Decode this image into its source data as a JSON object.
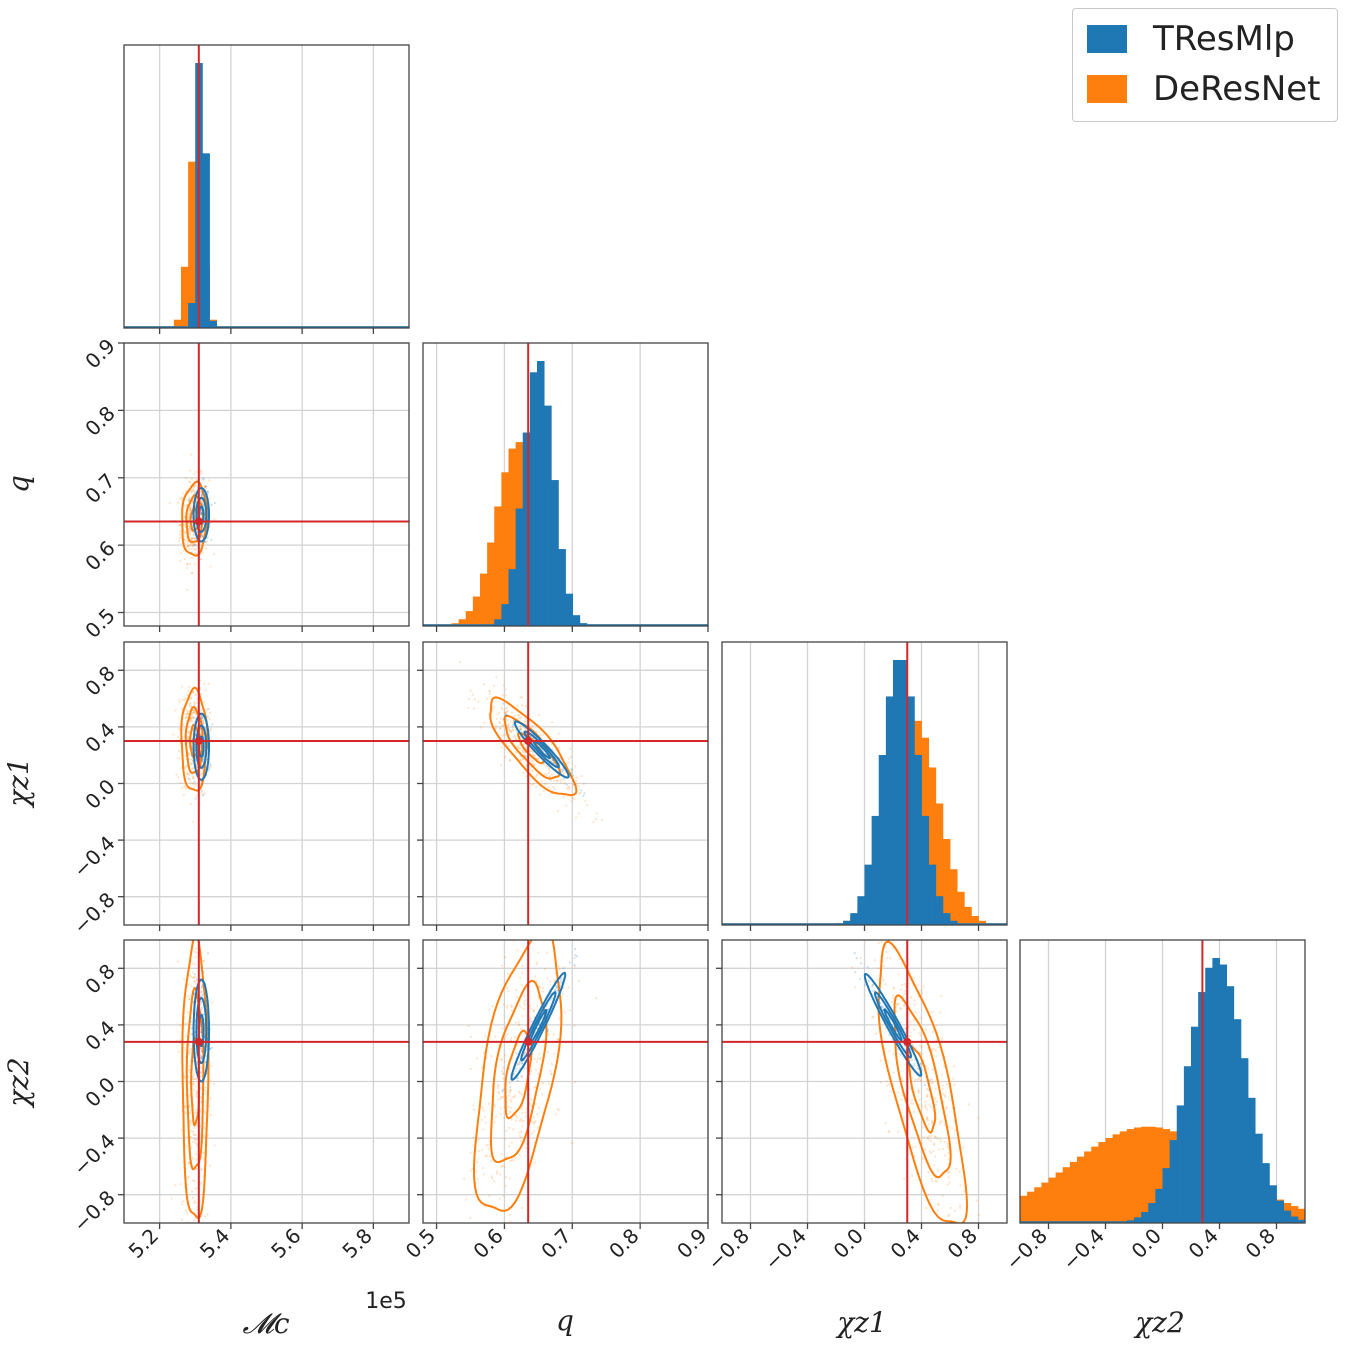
{
  "chart_data": {
    "type": "corner",
    "parameters": [
      "Mc",
      "q",
      "chi_z1",
      "chi_z2"
    ],
    "axis_labels": [
      "𝓜c",
      "q",
      "χz1",
      "χz2"
    ],
    "ranges": {
      "Mc": [
        5.1,
        5.9
      ],
      "q": [
        0.48,
        0.9
      ],
      "chi_z1": [
        -1.0,
        1.0
      ],
      "chi_z2": [
        -1.0,
        1.0
      ]
    },
    "ticks": {
      "Mc": [
        5.2,
        5.4,
        5.6,
        5.8
      ],
      "q": [
        0.5,
        0.6,
        0.7,
        0.8,
        0.9
      ],
      "chi_z1": [
        -0.8,
        -0.4,
        0.0,
        0.4,
        0.8
      ],
      "chi_z2": [
        -0.8,
        -0.4,
        0.0,
        0.4,
        0.8
      ]
    },
    "tick_labels": {
      "Mc": [
        "5.2",
        "5.4",
        "5.6",
        "5.8"
      ],
      "q": [
        "0.5",
        "0.6",
        "0.7",
        "0.8",
        "0.9"
      ],
      "chi_z1": [
        "−0.8",
        "−0.4",
        "0.0",
        "0.4",
        "0.8"
      ],
      "chi_z2": [
        "−0.8",
        "−0.4",
        "0.0",
        "0.4",
        "0.8"
      ]
    },
    "offset_text": "1e5",
    "truth": {
      "Mc": 5.31,
      "q": 0.635,
      "chi_z1": 0.3,
      "chi_z2": 0.28
    },
    "truth_color": "#d62728",
    "grid": true,
    "legend_position": "top-right",
    "series": [
      {
        "name": "TResMlp",
        "color": "#1f77b4",
        "marginals": {
          "Mc": {
            "mean": 5.317,
            "sd": 0.012
          },
          "q": {
            "mean": 0.65,
            "sd": 0.022
          },
          "chi_z1": {
            "mean": 0.25,
            "sd": 0.13
          },
          "chi_z2": {
            "mean": 0.38,
            "sd": 0.2
          }
        },
        "contours": {
          "q|Mc": {
            "center": [
              5.317,
              0.645
            ],
            "sd": [
              0.012,
              0.022
            ],
            "rho": 0.0
          },
          "chi_z1|Mc": {
            "center": [
              5.317,
              0.26
            ],
            "sd": [
              0.012,
              0.13
            ],
            "rho": 0.0
          },
          "chi_z2|Mc": {
            "center": [
              5.317,
              0.36
            ],
            "sd": [
              0.012,
              0.2
            ],
            "rho": 0.0
          },
          "chi_z1|q": {
            "center": [
              0.655,
              0.24
            ],
            "sd": [
              0.022,
              0.11
            ],
            "rho": -0.95
          },
          "chi_z2|q": {
            "center": [
              0.65,
              0.39
            ],
            "sd": [
              0.022,
              0.21
            ],
            "rho": 0.97
          },
          "chi_z2|chi_z1": {
            "center": [
              0.2,
              0.4
            ],
            "sd": [
              0.11,
              0.2
            ],
            "rho": -0.97
          }
        }
      },
      {
        "name": "DeResNet",
        "color": "#ff7f0e",
        "marginals": {
          "Mc": {
            "mean": 5.3,
            "sd": 0.02
          },
          "q": {
            "mean": 0.62,
            "sd": 0.032
          },
          "chi_z1": {
            "mean": 0.35,
            "sd": 0.17
          },
          "chi_z2": {
            "mean": -0.1,
            "sd": 0.55
          }
        },
        "contours": {
          "q|Mc": {
            "center": [
              5.298,
              0.638
            ],
            "sd": [
              0.02,
              0.03
            ],
            "rho": 0.1
          },
          "chi_z1|Mc": {
            "center": [
              5.297,
              0.3
            ],
            "sd": [
              0.02,
              0.2
            ],
            "rho": 0.0
          },
          "chi_z2|Mc": {
            "center": [
              5.3,
              0.0
            ],
            "sd": [
              0.02,
              0.55
            ],
            "rho": 0.0
          },
          "chi_z1|q": {
            "center": [
              0.64,
              0.25
            ],
            "sd": [
              0.035,
              0.19
            ],
            "rho": -0.82
          },
          "chi_z2|q": {
            "center": [
              0.62,
              0.05
            ],
            "sd": [
              0.035,
              0.55
            ],
            "rho": 0.55
          },
          "chi_z2|chi_z1": {
            "center": [
              0.4,
              -0.05
            ],
            "sd": [
              0.17,
              0.55
            ],
            "rho": -0.75
          }
        }
      }
    ]
  }
}
